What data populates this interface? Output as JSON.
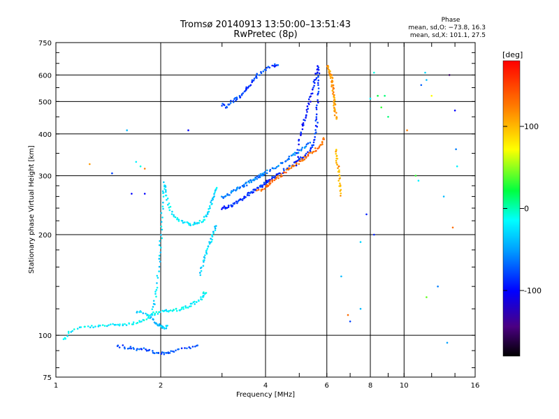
{
  "header": {
    "title": "Tromsø 20140913 13:50:00–13:51:43",
    "subtitle": "RwPretec (8p)"
  },
  "phase_info": {
    "heading": "Phase",
    "line_o": "mean, sd,O: −73.8, 16.3",
    "line_x": "mean, sd,X: 101.1, 27.5"
  },
  "chart_data": {
    "type": "scatter",
    "title": "Tromsø 20140913 13:50:00–13:51:43",
    "subtitle": "RwPretec (8p)",
    "xlabel": "Frequency [MHz]",
    "ylabel": "Stationary phase Virtual Height [km]",
    "x_scale": "log",
    "y_scale": "log",
    "xlim": [
      1,
      16
    ],
    "ylim": [
      75,
      750
    ],
    "x_ticks": [
      1,
      2,
      4,
      6,
      8,
      10,
      16
    ],
    "x_tick_labels": [
      "1",
      "2",
      "4",
      "6",
      "8",
      "10",
      "16"
    ],
    "y_ticks": [
      75,
      100,
      200,
      300,
      400,
      500,
      600,
      750
    ],
    "y_tick_labels": [
      "75",
      "100",
      "200",
      "300",
      "400",
      "500",
      "600",
      "750"
    ],
    "grid_x": [
      2,
      4,
      6,
      8,
      10
    ],
    "grid_y": [
      100,
      200,
      300,
      400,
      500,
      600
    ],
    "colorbar": {
      "label": "[deg]",
      "range": [
        -180,
        180
      ],
      "ticks": [
        100,
        0,
        -100
      ],
      "tick_labels": [
        "100",
        "0",
        "-100"
      ],
      "colormap": "rainbow (black → purple → blue → cyan → green → yellow → orange → red)"
    },
    "series": [
      {
        "trace": [
          [
            1.05,
            97
          ],
          [
            1.1,
            103
          ],
          [
            1.2,
            106
          ],
          [
            1.3,
            106
          ],
          [
            1.4,
            107
          ],
          [
            1.5,
            108
          ],
          [
            1.6,
            108
          ],
          [
            1.7,
            109
          ],
          [
            1.8,
            111
          ],
          [
            1.9,
            115
          ],
          [
            2.0,
            118
          ],
          [
            2.1,
            118
          ],
          [
            2.2,
            119
          ],
          [
            2.3,
            120
          ],
          [
            2.4,
            122
          ],
          [
            2.5,
            125
          ],
          [
            2.6,
            128
          ],
          [
            2.65,
            132
          ],
          [
            2.7,
            135
          ]
        ],
        "phase": -20
      },
      {
        "trace": [
          [
            1.7,
            118
          ],
          [
            1.8,
            116
          ],
          [
            1.9,
            112
          ],
          [
            1.95,
            108
          ],
          [
            2.0,
            106
          ],
          [
            2.05,
            105
          ],
          [
            2.1,
            107
          ]
        ],
        "phase": -35
      },
      {
        "trace": [
          [
            1.88,
            115
          ],
          [
            1.92,
            125
          ],
          [
            1.95,
            140
          ],
          [
            1.98,
            165
          ],
          [
            2.0,
            190
          ],
          [
            2.02,
            225
          ],
          [
            2.03,
            265
          ],
          [
            2.05,
            285
          ],
          [
            2.08,
            260
          ],
          [
            2.12,
            240
          ],
          [
            2.2,
            225
          ],
          [
            2.3,
            218
          ],
          [
            2.4,
            215
          ],
          [
            2.5,
            215
          ],
          [
            2.6,
            218
          ],
          [
            2.7,
            225
          ],
          [
            2.75,
            235
          ],
          [
            2.8,
            250
          ],
          [
            2.85,
            265
          ],
          [
            2.9,
            280
          ]
        ],
        "phase": -25
      },
      {
        "trace": [
          [
            2.6,
            150
          ],
          [
            2.65,
            165
          ],
          [
            2.7,
            175
          ],
          [
            2.75,
            185
          ],
          [
            2.8,
            195
          ],
          [
            2.85,
            205
          ],
          [
            2.9,
            215
          ]
        ],
        "phase": -30
      },
      {
        "trace": [
          [
            1.5,
            93
          ],
          [
            1.6,
            92
          ],
          [
            1.7,
            91
          ],
          [
            1.8,
            91
          ],
          [
            1.9,
            89
          ],
          [
            2.0,
            88
          ],
          [
            2.1,
            89
          ],
          [
            2.2,
            90
          ],
          [
            2.4,
            92
          ],
          [
            2.6,
            93
          ]
        ],
        "phase": -75
      },
      {
        "trace": [
          [
            3.0,
            240
          ],
          [
            3.1,
            242
          ],
          [
            3.2,
            245
          ],
          [
            3.3,
            250
          ],
          [
            3.4,
            255
          ],
          [
            3.5,
            260
          ],
          [
            3.6,
            265
          ],
          [
            3.7,
            270
          ],
          [
            3.8,
            275
          ],
          [
            3.9,
            280
          ],
          [
            4.0,
            285
          ],
          [
            4.1,
            290
          ],
          [
            4.2,
            295
          ],
          [
            4.4,
            305
          ],
          [
            4.6,
            315
          ],
          [
            4.8,
            325
          ],
          [
            5.0,
            335
          ],
          [
            5.2,
            345
          ],
          [
            5.4,
            360
          ],
          [
            5.5,
            380
          ],
          [
            5.6,
            420
          ],
          [
            5.62,
            460
          ],
          [
            5.65,
            520
          ],
          [
            5.67,
            580
          ],
          [
            5.7,
            640
          ]
        ],
        "phase": -85
      },
      {
        "trace": [
          [
            3.0,
            258
          ],
          [
            3.1,
            262
          ],
          [
            3.2,
            268
          ],
          [
            3.3,
            272
          ],
          [
            3.4,
            278
          ],
          [
            3.5,
            282
          ],
          [
            3.6,
            288
          ],
          [
            3.7,
            292
          ],
          [
            3.8,
            298
          ],
          [
            3.9,
            302
          ],
          [
            4.0,
            305
          ],
          [
            4.2,
            315
          ],
          [
            4.4,
            325
          ],
          [
            4.6,
            335
          ],
          [
            4.8,
            345
          ],
          [
            5.0,
            355
          ],
          [
            5.2,
            365
          ],
          [
            5.4,
            380
          ]
        ],
        "phase": -60
      },
      {
        "trace": [
          [
            3.8,
            270
          ],
          [
            4.0,
            278
          ],
          [
            4.1,
            284
          ],
          [
            4.2,
            290
          ],
          [
            4.4,
            300
          ],
          [
            4.6,
            310
          ],
          [
            4.8,
            320
          ],
          [
            5.0,
            330
          ],
          [
            5.2,
            340
          ],
          [
            5.4,
            350
          ],
          [
            5.6,
            360
          ],
          [
            5.8,
            375
          ],
          [
            5.9,
            390
          ]
        ],
        "phase": 130
      },
      {
        "trace": [
          [
            4.9,
            320
          ],
          [
            5.0,
            380
          ],
          [
            5.1,
            420
          ],
          [
            5.2,
            450
          ],
          [
            5.3,
            480
          ],
          [
            5.4,
            520
          ],
          [
            5.5,
            560
          ],
          [
            5.6,
            600
          ],
          [
            5.7,
            640
          ]
        ],
        "phase": -95
      },
      {
        "trace": [
          [
            3.0,
            490
          ],
          [
            3.1,
            480
          ],
          [
            3.2,
            500
          ],
          [
            3.3,
            510
          ],
          [
            3.4,
            520
          ],
          [
            3.5,
            540
          ],
          [
            3.6,
            560
          ],
          [
            3.7,
            580
          ],
          [
            3.8,
            600
          ],
          [
            4.0,
            625
          ],
          [
            4.2,
            640
          ],
          [
            4.4,
            650
          ]
        ],
        "phase": -80
      },
      {
        "trace": [
          [
            6.05,
            640
          ],
          [
            6.1,
            620
          ],
          [
            6.15,
            600
          ],
          [
            6.2,
            580
          ],
          [
            6.22,
            560
          ],
          [
            6.25,
            540
          ],
          [
            6.27,
            520
          ],
          [
            6.3,
            500
          ],
          [
            6.32,
            480
          ],
          [
            6.35,
            460
          ],
          [
            6.4,
            440
          ]
        ],
        "phase": 110
      },
      {
        "trace": [
          [
            6.35,
            360
          ],
          [
            6.4,
            340
          ],
          [
            6.45,
            320
          ],
          [
            6.5,
            300
          ],
          [
            6.55,
            280
          ],
          [
            6.6,
            260
          ]
        ],
        "phase": 100
      }
    ],
    "scatter_points": [
      [
        1.25,
        325,
        110
      ],
      [
        1.45,
        305,
        -80
      ],
      [
        1.6,
        410,
        -40
      ],
      [
        1.7,
        330,
        -20
      ],
      [
        1.75,
        320,
        -10
      ],
      [
        1.8,
        315,
        120
      ],
      [
        1.65,
        265,
        -100
      ],
      [
        1.8,
        265,
        -100
      ],
      [
        2.4,
        410,
        -100
      ],
      [
        7.0,
        110,
        -80
      ],
      [
        6.6,
        150,
        -40
      ],
      [
        7.5,
        190,
        -30
      ],
      [
        7.8,
        230,
        -90
      ],
      [
        8.2,
        610,
        -10
      ],
      [
        8.4,
        520,
        20
      ],
      [
        8.6,
        480,
        30
      ],
      [
        8.8,
        520,
        10
      ],
      [
        9.0,
        450,
        10
      ],
      [
        10.2,
        410,
        120
      ],
      [
        10.8,
        300,
        30
      ],
      [
        11.0,
        290,
        -20
      ],
      [
        11.5,
        610,
        -30
      ],
      [
        11.6,
        580,
        -40
      ],
      [
        12.0,
        520,
        70
      ],
      [
        13.0,
        260,
        -40
      ],
      [
        13.5,
        600,
        -150
      ],
      [
        14.0,
        470,
        -100
      ],
      [
        14.1,
        360,
        -60
      ],
      [
        14.2,
        320,
        -20
      ],
      [
        13.8,
        210,
        130
      ],
      [
        12.5,
        140,
        -60
      ],
      [
        11.6,
        130,
        40
      ],
      [
        13.3,
        95,
        -50
      ],
      [
        8.2,
        200,
        -90
      ],
      [
        7.5,
        120,
        -40
      ],
      [
        6.9,
        115,
        130
      ],
      [
        6.5,
        320,
        130
      ],
      [
        8.0,
        510,
        -20
      ],
      [
        11.2,
        560,
        -70
      ]
    ]
  }
}
